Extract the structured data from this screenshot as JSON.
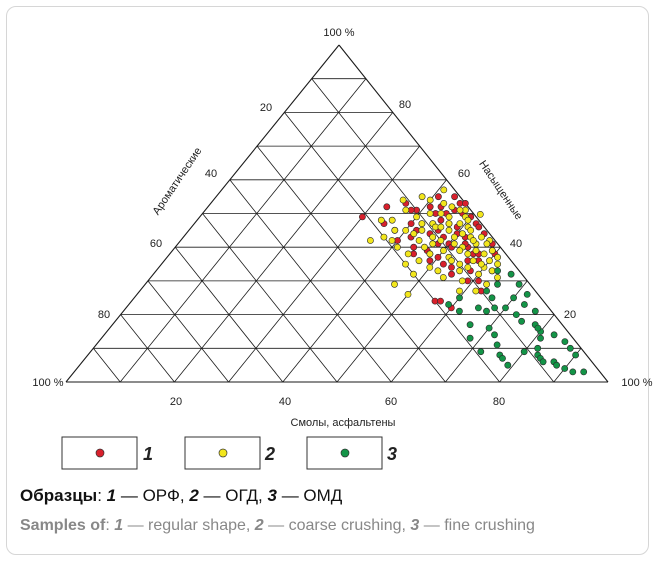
{
  "chart_data": {
    "type": "scatter",
    "subtype": "ternary",
    "apex_label": "100 %",
    "left_corner_label": "100 %",
    "right_corner_label": "100 %",
    "left_axis_title": "Ароматические",
    "right_axis_title": "Насыщенные",
    "bottom_axis_title": "Смолы,  асфальтены",
    "left_ticks": [
      "20",
      "40",
      "60",
      "80"
    ],
    "right_ticks": [
      "80",
      "60",
      "40",
      "20"
    ],
    "bottom_ticks": [
      "20",
      "40",
      "60",
      "80"
    ],
    "grid": true,
    "grid_step": 10,
    "legend": [
      {
        "marker_color": "#d8202c",
        "label": "1"
      },
      {
        "marker_color": "#f2e61c",
        "label": "2"
      },
      {
        "marker_color": "#139447",
        "label": "3"
      }
    ],
    "series": [
      {
        "name": "1",
        "color": "#d8202c",
        "points": [
          [
            45,
            38,
            17
          ],
          [
            40,
            42,
            18
          ],
          [
            38,
            45,
            17
          ],
          [
            42,
            43,
            15
          ],
          [
            47,
            39,
            14
          ],
          [
            48,
            41,
            11
          ],
          [
            50,
            37,
            13
          ],
          [
            52,
            35,
            13
          ],
          [
            55,
            32,
            13
          ],
          [
            54,
            34,
            12
          ],
          [
            48,
            43,
            9
          ],
          [
            50,
            41,
            9
          ],
          [
            46,
            45,
            9
          ],
          [
            44,
            47,
            9
          ],
          [
            43,
            50,
            7
          ],
          [
            45,
            48,
            7
          ],
          [
            41,
            52,
            7
          ],
          [
            49,
            46,
            5
          ],
          [
            52,
            43,
            5
          ],
          [
            54,
            40,
            6
          ],
          [
            56,
            36,
            8
          ],
          [
            58,
            33,
            9
          ],
          [
            56,
            38,
            6
          ],
          [
            50,
            44,
            6
          ],
          [
            52,
            47,
            1
          ],
          [
            55,
            44,
            1
          ],
          [
            58,
            41,
            1
          ],
          [
            60,
            38,
            2
          ],
          [
            57,
            38,
            5
          ],
          [
            53,
            41,
            6
          ],
          [
            47,
            47,
            6
          ],
          [
            45,
            50,
            5
          ],
          [
            48,
            50,
            2
          ],
          [
            42,
            47,
            11
          ],
          [
            40,
            47,
            13
          ],
          [
            39,
            51,
            10
          ],
          [
            36,
            53,
            11
          ],
          [
            43,
            52,
            5
          ],
          [
            46,
            51,
            3
          ],
          [
            56,
            24,
            20
          ],
          [
            60,
            22,
            18
          ],
          [
            57,
            24,
            19
          ],
          [
            33,
            52,
            15
          ],
          [
            30,
            49,
            21
          ],
          [
            44,
            55,
            1
          ],
          [
            50,
            49,
            1
          ],
          [
            46,
            53,
            1
          ],
          [
            61,
            30,
            9
          ],
          [
            48,
            38,
            14
          ],
          [
            44,
            40,
            16
          ],
          [
            58,
            36,
            6
          ],
          [
            35,
            47,
            18
          ],
          [
            38,
            51,
            11
          ],
          [
            41,
            55,
            4
          ],
          [
            47,
            53,
            0
          ],
          [
            53,
            46,
            1
          ],
          [
            59,
            39,
            2
          ],
          [
            62,
            33,
            5
          ],
          [
            51,
            40,
            9
          ],
          [
            45,
            44,
            11
          ],
          [
            49,
            36,
            15
          ],
          [
            42,
            45,
            13
          ],
          [
            63,
            27,
            10
          ],
          [
            59,
            30,
            11
          ]
        ]
      },
      {
        "name": "2",
        "color": "#f2e61c",
        "points": [
          [
            45,
            35,
            20
          ],
          [
            50,
            34,
            16
          ],
          [
            47,
            36,
            17
          ],
          [
            55,
            38,
            7
          ],
          [
            53,
            40,
            7
          ],
          [
            50,
            43,
            7
          ],
          [
            48,
            45,
            7
          ],
          [
            47,
            47,
            6
          ],
          [
            51,
            44,
            5
          ],
          [
            55,
            41,
            4
          ],
          [
            58,
            38,
            4
          ],
          [
            60,
            34,
            6
          ],
          [
            57,
            34,
            9
          ],
          [
            52,
            37,
            11
          ],
          [
            44,
            47,
            9
          ],
          [
            42,
            50,
            8
          ],
          [
            46,
            49,
            5
          ],
          [
            49,
            47,
            4
          ],
          [
            55,
            43,
            2
          ],
          [
            57,
            42,
            1
          ],
          [
            59,
            39,
            2
          ],
          [
            62,
            35,
            3
          ],
          [
            62,
            33,
            5
          ],
          [
            60,
            32,
            8
          ],
          [
            58,
            30,
            12
          ],
          [
            46,
            43,
            11
          ],
          [
            43,
            45,
            12
          ],
          [
            38,
            45,
            17
          ],
          [
            36,
            48,
            16
          ],
          [
            34,
            48,
            18
          ],
          [
            40,
            49,
            11
          ],
          [
            42,
            47,
            11
          ],
          [
            46,
            40,
            14
          ],
          [
            48,
            42,
            10
          ],
          [
            50,
            39,
            11
          ],
          [
            53,
            43,
            4
          ],
          [
            51,
            46,
            3
          ],
          [
            49,
            49,
            2
          ],
          [
            45,
            52,
            3
          ],
          [
            44,
            50,
            6
          ],
          [
            40,
            54,
            6
          ],
          [
            38,
            55,
            7
          ],
          [
            37,
            51,
            12
          ],
          [
            35,
            54,
            11
          ],
          [
            57,
            41,
            2
          ],
          [
            61,
            37,
            2
          ],
          [
            64,
            31,
            5
          ],
          [
            63,
            29,
            8
          ],
          [
            54,
            31,
            15
          ],
          [
            52,
            33,
            15
          ],
          [
            48,
            32,
            20
          ],
          [
            46,
            29,
            25
          ],
          [
            50,
            26,
            24
          ],
          [
            47,
            41,
            12
          ],
          [
            44,
            42,
            14
          ],
          [
            41,
            40,
            19
          ],
          [
            39,
            42,
            19
          ],
          [
            37,
            43,
            20
          ],
          [
            35,
            42,
            23
          ],
          [
            55,
            35,
            10
          ],
          [
            57,
            36,
            7
          ],
          [
            53,
            39,
            8
          ],
          [
            50,
            48,
            2
          ],
          [
            56,
            39,
            5
          ],
          [
            59,
            35,
            6
          ],
          [
            60,
            36,
            4
          ],
          [
            43,
            53,
            4
          ],
          [
            48,
            51,
            1
          ],
          [
            52,
            45,
            3
          ],
          [
            54,
            42,
            4
          ],
          [
            45,
            46,
            9
          ],
          [
            42,
            44,
            14
          ],
          [
            40,
            45,
            15
          ],
          [
            62,
            27,
            11
          ],
          [
            59,
            27,
            14
          ],
          [
            51,
            41,
            8
          ],
          [
            46,
            46,
            8
          ],
          [
            48,
            38,
            14
          ],
          [
            44,
            38,
            18
          ],
          [
            56,
            33,
            11
          ],
          [
            53,
            36,
            11
          ],
          [
            50,
            52,
            0
          ],
          [
            47,
            51,
            2
          ],
          [
            41,
            57,
            2
          ]
        ]
      },
      {
        "name": "3",
        "color": "#139447",
        "points": [
          [
            59,
            23,
            18
          ],
          [
            62,
            21,
            17
          ],
          [
            60,
            25,
            15
          ],
          [
            65,
            22,
            13
          ],
          [
            67,
            21,
            12
          ],
          [
            66,
            17,
            17
          ],
          [
            70,
            16,
            14
          ],
          [
            68,
            13,
            19
          ],
          [
            72,
            14,
            14
          ],
          [
            72,
            9,
            19
          ],
          [
            74,
            11,
            15
          ],
          [
            76,
            8,
            16
          ],
          [
            77,
            7,
            16
          ],
          [
            79,
            5,
            16
          ],
          [
            80,
            9,
            11
          ],
          [
            82,
            10,
            8
          ],
          [
            83,
            8,
            9
          ],
          [
            84,
            7,
            9
          ],
          [
            85,
            6,
            9
          ],
          [
            87,
            6,
            7
          ],
          [
            88,
            5,
            7
          ],
          [
            90,
            4,
            6
          ],
          [
            92,
            3,
            5
          ],
          [
            94,
            3,
            3
          ],
          [
            64,
            27,
            9
          ],
          [
            66,
            25,
            9
          ],
          [
            68,
            22,
            10
          ],
          [
            70,
            25,
            5
          ],
          [
            73,
            20,
            7
          ],
          [
            75,
            18,
            7
          ],
          [
            78,
            17,
            5
          ],
          [
            80,
            15,
            5
          ],
          [
            73,
            23,
            4
          ],
          [
            70,
            22,
            8
          ],
          [
            65,
            29,
            6
          ],
          [
            63,
            33,
            4
          ],
          [
            66,
            32,
            2
          ],
          [
            69,
            29,
            2
          ],
          [
            72,
            26,
            2
          ],
          [
            76,
            21,
            3
          ],
          [
            79,
            16,
            5
          ],
          [
            81,
            13,
            6
          ],
          [
            83,
            14,
            3
          ],
          [
            86,
            12,
            2
          ],
          [
            88,
            10,
            2
          ],
          [
            90,
            8,
            2
          ]
        ]
      }
    ]
  },
  "legend_items": [
    {
      "label": "1"
    },
    {
      "label": "2"
    },
    {
      "label": "3"
    }
  ],
  "caption_ru": {
    "lead": "Образцы",
    "sep": ": ",
    "n1": "1",
    "t1": " — ОРФ, ",
    "n2": "2",
    "t2": " — ОГД, ",
    "n3": "3",
    "t3": " — ОМД"
  },
  "caption_en": {
    "lead": "Samples of",
    "sep": ": ",
    "n1": "1",
    "t1": " — regular shape, ",
    "n2": "2",
    "t2": " — coarse crushing, ",
    "n3": "3",
    "t3": " — fine crushing"
  }
}
